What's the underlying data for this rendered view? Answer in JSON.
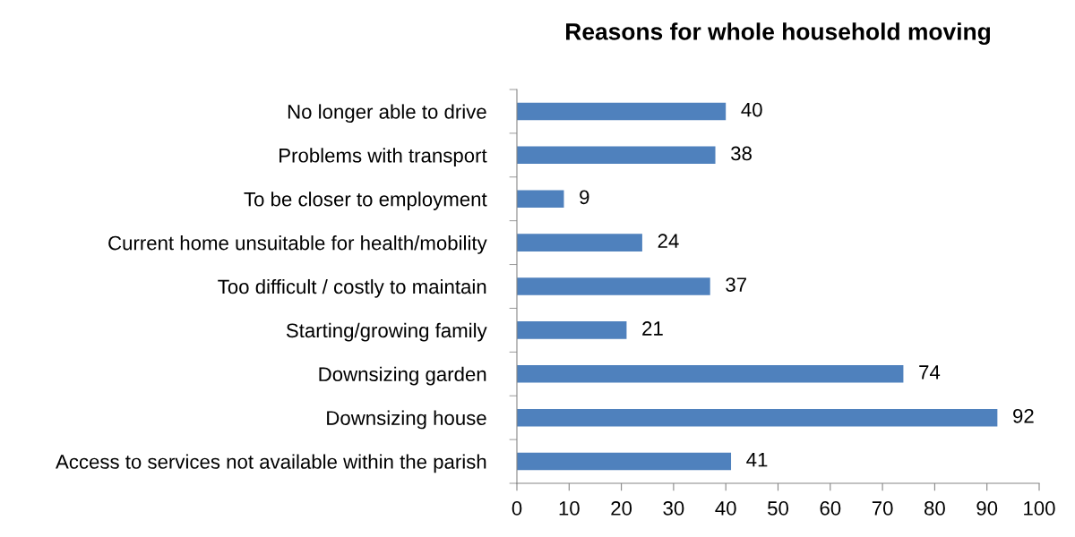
{
  "chart_data": {
    "type": "bar",
    "orientation": "horizontal",
    "title": "Reasons for whole household moving",
    "categories": [
      "No longer able to drive",
      "Problems with transport",
      "To be closer to employment",
      "Current home unsuitable for health/mobility",
      "Too difficult / costly to maintain",
      "Starting/growing family",
      "Downsizing garden",
      "Downsizing house",
      "Access to services not available within the parish"
    ],
    "values": [
      40,
      38,
      9,
      24,
      37,
      21,
      74,
      92,
      41
    ],
    "color": "#4f81bd",
    "xlim": [
      0,
      100
    ],
    "xticks": [
      0,
      10,
      20,
      30,
      40,
      50,
      60,
      70,
      80,
      90,
      100
    ],
    "grid": false,
    "legend": false,
    "data_labels": true
  }
}
